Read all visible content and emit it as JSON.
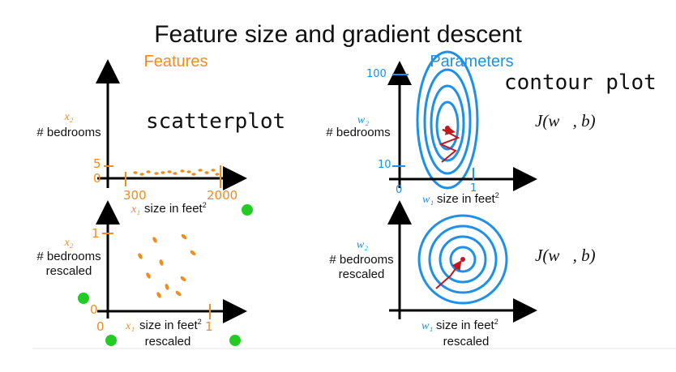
{
  "title": "Feature size and gradient descent",
  "headings": {
    "features": "Features",
    "parameters": "Parameters"
  },
  "annotations": {
    "scatterplot": "scatterplot",
    "contour_plot": "contour plot"
  },
  "top_left": {
    "y_var": "x₂",
    "y_label": "# bedrooms",
    "x_var": "x₁",
    "x_label": "size in feet",
    "x_label_exp": "2",
    "y_ticks": [
      "5",
      "0"
    ],
    "x_ticks": [
      "300",
      "2000"
    ]
  },
  "bottom_left": {
    "y_var": "x₂",
    "y_label_1": "# bedrooms",
    "y_label_2": "rescaled",
    "x_var": "x₁",
    "x_label": "size in feet",
    "x_label_exp": "2",
    "x_label_2": "rescaled",
    "y_ticks": [
      "1",
      "0"
    ],
    "x_ticks": [
      "0",
      "1"
    ]
  },
  "top_right": {
    "y_var": "w₂",
    "y_label": "# bedrooms",
    "x_var": "w₁",
    "x_label": "size in feet",
    "x_label_exp": "2",
    "y_ticks": [
      "100",
      "10"
    ],
    "x_ticks": [
      "0",
      "1"
    ],
    "cost": "J(w⃗, b)"
  },
  "bottom_right": {
    "y_var": "w₂",
    "y_label_1": "# bedrooms",
    "y_label_2": "rescaled",
    "x_var": "w₁",
    "x_label": "size in feet",
    "x_label_exp": "2",
    "x_label_2": "rescaled",
    "cost": "J(w⃗, b)"
  },
  "colors": {
    "orange": "#f28c1c",
    "blue": "#1e90e8",
    "red": "#c4161c",
    "green": "#22cc22",
    "axis": "#000000"
  }
}
